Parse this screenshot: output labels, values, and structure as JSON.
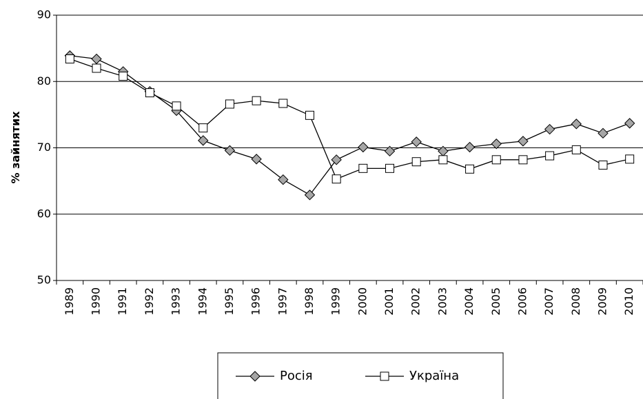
{
  "chart_data": {
    "type": "line",
    "y_label": "% зайнятих",
    "categories": [
      "1989",
      "1990",
      "1991",
      "1992",
      "1993",
      "1994",
      "1995",
      "1996",
      "1997",
      "1998",
      "1999",
      "2000",
      "2001",
      "2002",
      "2003",
      "2004",
      "2005",
      "2006",
      "2007",
      "2008",
      "2009",
      "2010"
    ],
    "series": [
      {
        "name": "Росія",
        "color": "#a6a6a6",
        "marker": "diamond",
        "values": [
          83.9,
          83.4,
          81.5,
          78.5,
          75.6,
          71.1,
          69.6,
          68.3,
          65.2,
          62.9,
          68.2,
          70.1,
          69.5,
          70.9,
          69.5,
          70.1,
          70.6,
          71.0,
          72.8,
          73.6,
          72.2,
          73.7
        ]
      },
      {
        "name": "Україна",
        "color": "#ffffff",
        "marker": "square",
        "values": [
          83.4,
          82.0,
          80.8,
          78.3,
          76.3,
          73.0,
          76.6,
          77.1,
          76.7,
          74.9,
          65.3,
          66.9,
          66.9,
          67.9,
          68.2,
          66.8,
          68.2,
          68.2,
          68.8,
          69.7,
          67.4,
          68.3
        ]
      }
    ],
    "ylim": [
      50,
      90
    ],
    "yticks": [
      50,
      60,
      70,
      80,
      90
    ],
    "grid": true,
    "legend": "bottom"
  }
}
